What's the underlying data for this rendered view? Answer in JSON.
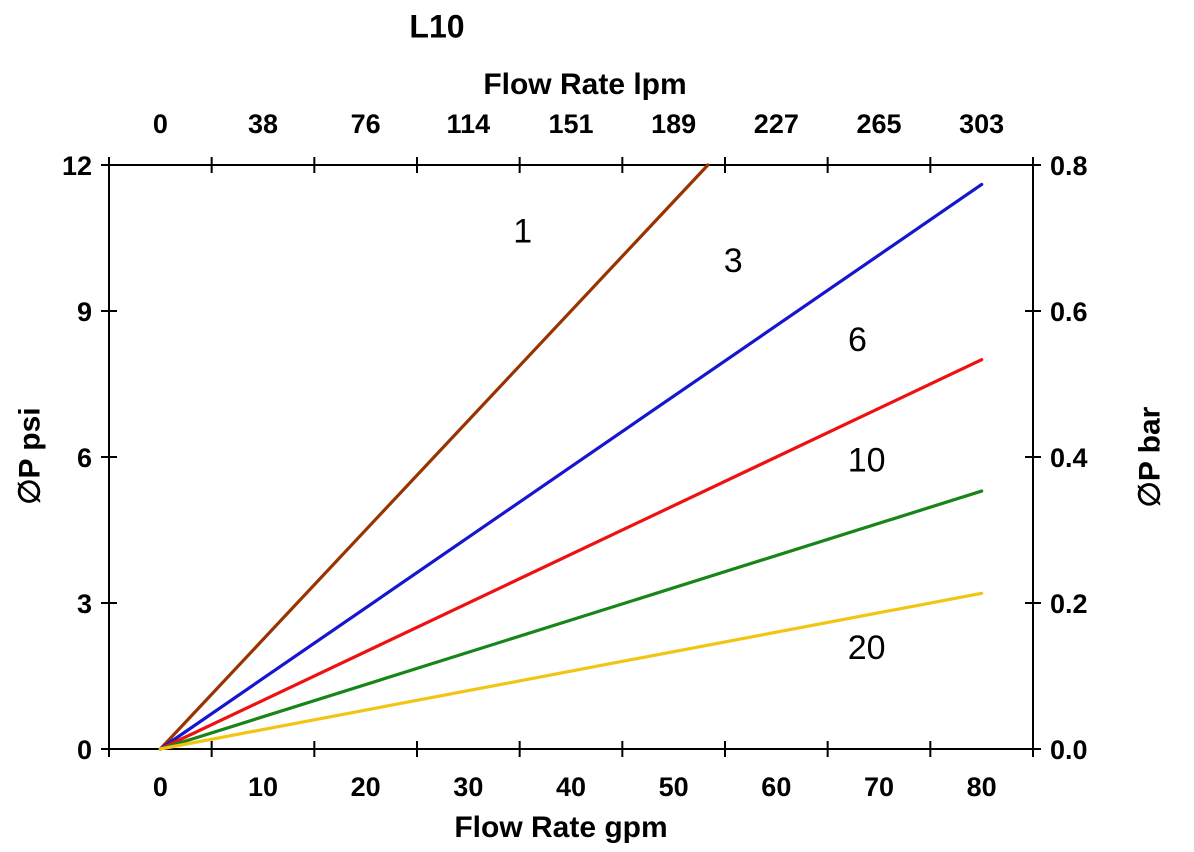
{
  "page": {
    "background": "#FFFFFF"
  },
  "chart_data": {
    "type": "line",
    "title": "L10",
    "x_axis_top": {
      "label": "Flow Rate lpm",
      "tick_labels": [
        "0",
        "38",
        "76",
        "114",
        "151",
        "189",
        "227",
        "265",
        "303"
      ]
    },
    "x_axis_bottom": {
      "label": "Flow Rate gpm",
      "tick_labels": [
        "0",
        "10",
        "20",
        "30",
        "40",
        "50",
        "60",
        "70",
        "80"
      ],
      "range": [
        0,
        80
      ]
    },
    "y_axis_left": {
      "label": "∅P psi",
      "tick_labels": [
        "0",
        "3",
        "6",
        "9",
        "12"
      ],
      "range": [
        0,
        12
      ]
    },
    "y_axis_right": {
      "label": "∅P bar",
      "tick_labels": [
        "0.0",
        "0.2",
        "0.4",
        "0.6",
        "0.8"
      ],
      "range": [
        0,
        0.8
      ]
    },
    "grid": "off",
    "legend": "inline-labels",
    "series": [
      {
        "name": "1",
        "color": "#993300",
        "x_gpm": [
          0,
          80
        ],
        "y_psi": [
          0,
          18.0
        ],
        "clipped_at_psi": 12,
        "exits_top_at_gpm": 53.3,
        "label_pos": {
          "gpm": 35.3,
          "psi": 10.65
        }
      },
      {
        "name": "3",
        "color": "#1616CE",
        "x_gpm": [
          0,
          80
        ],
        "y_psi": [
          0,
          11.6
        ],
        "label_pos": {
          "gpm": 55.8,
          "psi": 10.05
        }
      },
      {
        "name": "6",
        "color": "#EE1111",
        "x_gpm": [
          0,
          80
        ],
        "y_psi": [
          0,
          8.0
        ],
        "label_pos": {
          "gpm": 67.9,
          "psi": 8.42
        }
      },
      {
        "name": "10",
        "color": "#178517",
        "x_gpm": [
          0,
          80
        ],
        "y_psi": [
          0,
          5.3
        ],
        "label_pos": {
          "gpm": 68.8,
          "psi": 5.95
        }
      },
      {
        "name": "20",
        "color": "#F2C513",
        "x_gpm": [
          0,
          80
        ],
        "y_psi": [
          0,
          3.2
        ],
        "label_pos": {
          "gpm": 68.8,
          "psi": 2.1
        }
      }
    ],
    "axis_color": "#000000"
  }
}
